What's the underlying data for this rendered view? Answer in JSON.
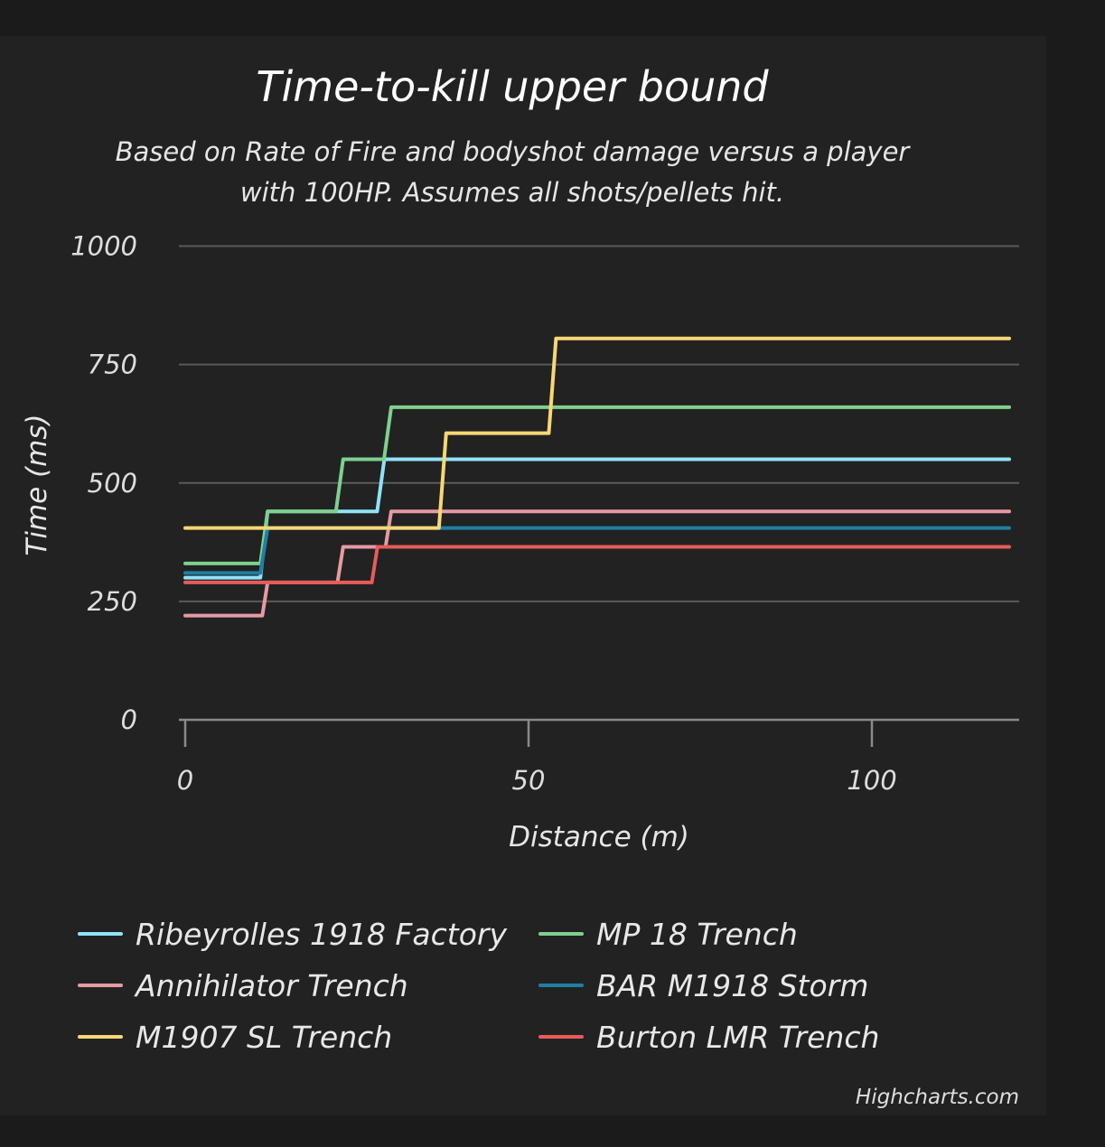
{
  "chart_data": {
    "type": "line",
    "step": true,
    "title": "Time-to-kill upper bound",
    "subtitle_lines": [
      "Based on Rate of Fire and bodyshot damage versus a player",
      "with 100HP. Assumes all shots/pellets hit."
    ],
    "xlabel": "Distance (m)",
    "ylabel": "Time (ms)",
    "xlim": [
      0,
      120
    ],
    "ylim": [
      0,
      1000
    ],
    "x_ticks": [
      0,
      50,
      100
    ],
    "y_ticks": [
      0,
      250,
      500,
      750,
      1000
    ],
    "grid": true,
    "legend_position": "bottom",
    "credits": "Highcharts.com",
    "series": [
      {
        "name": "Ribeyrolles 1918 Factory",
        "color": "#8fe3f7",
        "x": [
          0,
          12,
          29,
          120
        ],
        "y": [
          300,
          440,
          550,
          550
        ]
      },
      {
        "name": "MP 18 Trench",
        "color": "#7fd08e",
        "x": [
          0,
          12,
          23,
          30,
          120
        ],
        "y": [
          330,
          440,
          550,
          660,
          660
        ]
      },
      {
        "name": "Annihilator Trench",
        "color": "#e69aa5",
        "x": [
          0,
          12,
          23,
          30,
          120
        ],
        "y": [
          220,
          290,
          365,
          440,
          440
        ]
      },
      {
        "name": "BAR M1918 Storm",
        "color": "#1e7fa6",
        "x": [
          0,
          12,
          38,
          120
        ],
        "y": [
          310,
          405,
          405,
          405
        ]
      },
      {
        "name": "M1907 SL Trench",
        "color": "#f7d774",
        "x": [
          0,
          38,
          54,
          120
        ],
        "y": [
          405,
          605,
          805,
          805
        ]
      },
      {
        "name": "Burton LMR Trench",
        "color": "#e85b5b",
        "x": [
          0,
          28,
          120
        ],
        "y": [
          290,
          365,
          365
        ]
      }
    ]
  }
}
